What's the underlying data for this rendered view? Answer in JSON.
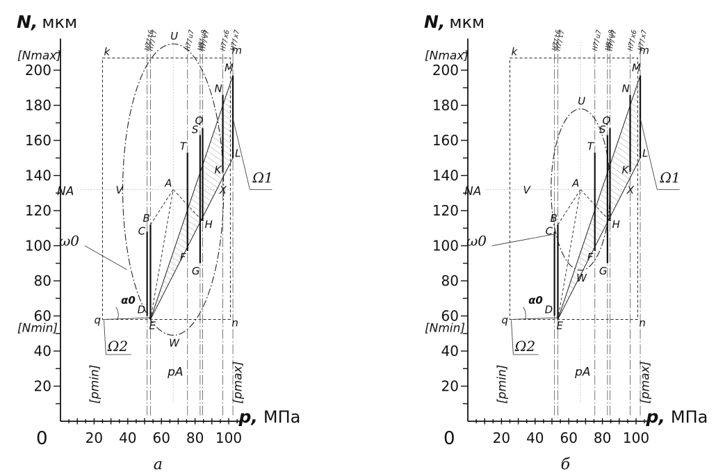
{
  "chart_data": [
    {
      "panel": "a",
      "caption": "а",
      "type": "scatter",
      "x_axis": {
        "label": "p,",
        "unit": "МПа",
        "range": [
          0,
          110
        ],
        "ticks": [
          20,
          40,
          60,
          80,
          100
        ]
      },
      "y_axis": {
        "label": "N,",
        "unit": "мкм",
        "range": [
          0,
          213
        ],
        "ticks": [
          20,
          40,
          60,
          80,
          100,
          120,
          140,
          160,
          180,
          200
        ]
      },
      "origin_label": "0",
      "bounds": {
        "p_min": 25,
        "p_max": 101,
        "N_min": 58,
        "N_max": 207,
        "p_A": 67,
        "N_A": 132
      },
      "bound_labels": {
        "N_max": "[Nmax]",
        "N_min": "[Nmin]",
        "N_A": "NA",
        "p_A": "pA",
        "p_min": "[pmin]",
        "p_max": "[pmax]"
      },
      "fits": [
        {
          "label": "H7/t6",
          "p": 51.5
        },
        {
          "label": "H7/t7",
          "p": 53.5
        },
        {
          "label": "H7/u7",
          "p": 75.5
        },
        {
          "label": "H8/u8",
          "p": 83
        },
        {
          "label": "H7/v7",
          "p": 84.5
        },
        {
          "label": "H7/x6",
          "p": 96.5
        },
        {
          "label": "H7/x7",
          "p": 102.5
        }
      ],
      "fit_segments": [
        {
          "from": "C",
          "to": "D",
          "p": 51.5,
          "n": [
            108,
            60
          ]
        },
        {
          "from": "B",
          "to": "E",
          "p": 53.5,
          "n": [
            112,
            58
          ]
        },
        {
          "from": "T",
          "to": "F",
          "p": 75.5,
          "n": [
            153,
            97
          ]
        },
        {
          "from": "S",
          "to": "G",
          "p": 83,
          "n": [
            163,
            90
          ]
        },
        {
          "from": "Q",
          "to": "H",
          "p": 84.5,
          "n": [
            167,
            114
          ]
        },
        {
          "from": "N",
          "to": "K",
          "p": 96.5,
          "n": [
            186,
            142
          ]
        },
        {
          "from": "M",
          "to": "L",
          "p": 102.5,
          "n": [
            197,
            150
          ]
        }
      ],
      "points": [
        {
          "name": "A",
          "p": 67,
          "n": 132
        },
        {
          "name": "U",
          "p": 67,
          "n": 215
        },
        {
          "name": "W",
          "p": 67,
          "n": 49
        },
        {
          "name": "V",
          "p": 37,
          "n": 132
        },
        {
          "name": "X",
          "p": 97,
          "n": 132
        }
      ],
      "ellipse": {
        "cp": 67,
        "cn": 132,
        "rp": 30,
        "rn": 83
      },
      "region_omega1": [
        [
          53.5,
          58
        ],
        [
          102.5,
          197
        ],
        [
          102.5,
          150
        ],
        [
          53.5,
          58
        ]
      ],
      "ellipse_labels": {
        "omega0": "ω0",
        "omega1": "Ω1",
        "omega2": "Ω2",
        "alpha0": "α0"
      },
      "frame_labels": {
        "k": "k",
        "m": "m",
        "q": "q",
        "n": "n"
      }
    },
    {
      "panel": "b",
      "caption": "б",
      "type": "scatter",
      "x_axis": {
        "label": "p,",
        "unit": "МПа",
        "range": [
          0,
          110
        ],
        "ticks": [
          20,
          40,
          60,
          80,
          100
        ]
      },
      "y_axis": {
        "label": "N,",
        "unit": "мкм",
        "range": [
          0,
          213
        ],
        "ticks": [
          20,
          40,
          60,
          80,
          100,
          120,
          140,
          160,
          180,
          200
        ]
      },
      "origin_label": "0",
      "bounds": {
        "p_min": 25,
        "p_max": 101,
        "N_min": 58,
        "N_max": 207,
        "p_A": 67,
        "N_A": 132
      },
      "bound_labels": {
        "N_max": "[Nmax]",
        "N_min": "[Nmin]",
        "N_A": "NA",
        "p_A": "pA",
        "p_min": "[pmin]",
        "p_max": "[pmax]"
      },
      "fits": [
        {
          "label": "H7/t6",
          "p": 51.5
        },
        {
          "label": "H7/t7",
          "p": 53.5
        },
        {
          "label": "H7/u7",
          "p": 75.5
        },
        {
          "label": "H8/u8",
          "p": 83
        },
        {
          "label": "H7/v7",
          "p": 84.5
        },
        {
          "label": "H7/x6",
          "p": 96.5
        },
        {
          "label": "H7/x7",
          "p": 102.5
        }
      ],
      "fit_segments": [
        {
          "from": "C",
          "to": "D",
          "p": 51.5,
          "n": [
            108,
            60
          ]
        },
        {
          "from": "B",
          "to": "E",
          "p": 53.5,
          "n": [
            112,
            58
          ]
        },
        {
          "from": "T",
          "to": "F",
          "p": 75.5,
          "n": [
            153,
            97
          ]
        },
        {
          "from": "S",
          "to": "G",
          "p": 83,
          "n": [
            163,
            90
          ]
        },
        {
          "from": "Q",
          "to": "H",
          "p": 84.5,
          "n": [
            167,
            114
          ]
        },
        {
          "from": "N",
          "to": "K",
          "p": 96.5,
          "n": [
            186,
            142
          ]
        },
        {
          "from": "M",
          "to": "L",
          "p": 102.5,
          "n": [
            197,
            150
          ]
        }
      ],
      "points": [
        {
          "name": "A",
          "p": 67,
          "n": 132
        },
        {
          "name": "U",
          "p": 67,
          "n": 178
        },
        {
          "name": "W",
          "p": 67,
          "n": 86
        },
        {
          "name": "V",
          "p": 37,
          "n": 132
        },
        {
          "name": "X",
          "p": 97,
          "n": 132
        }
      ],
      "ellipse": {
        "cp": 67,
        "cn": 132,
        "rp": 17.5,
        "rn": 46
      },
      "region_omega1": [
        [
          53.5,
          58
        ],
        [
          102.5,
          197
        ],
        [
          102.5,
          150
        ],
        [
          53.5,
          58
        ]
      ],
      "ellipse_labels": {
        "omega0": "ω0",
        "omega1": "Ω1",
        "omega2": "Ω2",
        "alpha0": "α0"
      },
      "frame_labels": {
        "k": "k",
        "m": "m",
        "q": "q",
        "n": "n"
      }
    }
  ]
}
